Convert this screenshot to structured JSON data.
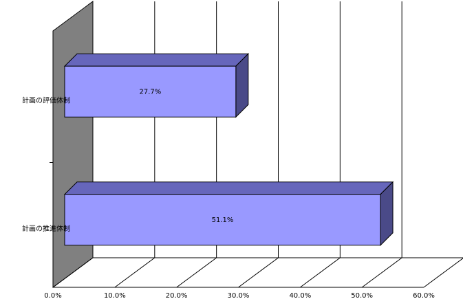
{
  "chart_data": {
    "type": "bar",
    "orientation": "horizontal",
    "categories": [
      "計画の評価体制",
      "計画の推進体制"
    ],
    "values": [
      27.7,
      51.1
    ],
    "value_labels": [
      "27.7%",
      "51.1%"
    ],
    "color": "#9999ff",
    "xlim": [
      0,
      60
    ],
    "xticks": [
      {
        "value": 0,
        "label": "0.0%"
      },
      {
        "value": 10,
        "label": "10.0%"
      },
      {
        "value": 20,
        "label": "20.0%"
      },
      {
        "value": 30,
        "label": "30.0%"
      },
      {
        "value": 40,
        "label": "40.0%"
      },
      {
        "value": 50,
        "label": "50.0%"
      },
      {
        "value": 60,
        "label": "60.0%"
      }
    ],
    "grid": true
  }
}
